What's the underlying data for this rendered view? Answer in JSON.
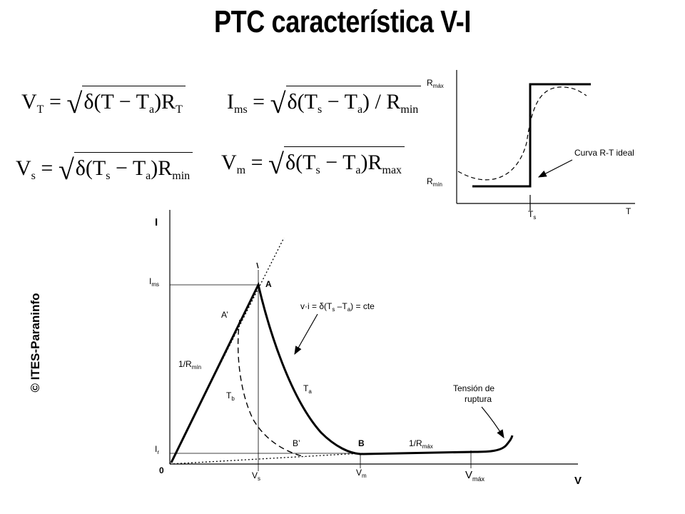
{
  "title": "PTC característica V-I",
  "copyright": "© ITES-Paraninfo",
  "formulas": {
    "vt": {
      "lhs": "V",
      "lhs_sub": "T",
      "delta": "δ(T − T",
      "a": "a",
      "close": ")R",
      "r_sub": "T"
    },
    "ims": {
      "lhs": "I",
      "lhs_sub": "ms",
      "delta": "δ(T",
      "s": "s",
      "mid": " − T",
      "a": "a",
      "close": ") / R",
      "r_sub": "min"
    },
    "vs": {
      "lhs": "V",
      "lhs_sub": "s",
      "delta": "δ(T",
      "s": "s",
      "mid": " − T",
      "a": "a",
      "close": ")R",
      "r_sub": "min"
    },
    "vm": {
      "lhs": "V",
      "lhs_sub": "m",
      "delta": "δ(T",
      "s": "s",
      "mid": " − T",
      "a": "a",
      "close": ")R",
      "r_sub": "max"
    }
  },
  "rt_graph": {
    "y_top_label": "R",
    "y_top_sub": "máx",
    "y_bottom_label": "R",
    "y_bottom_sub": "mín",
    "x_label": "T",
    "ts_label": "T",
    "ts_sub": "s",
    "annotation": "Curva R-T ideal"
  },
  "vi_graph": {
    "y_axis": "I",
    "x_axis": "V",
    "origin": "0",
    "ims_label": "I",
    "ims_sub": "ms",
    "ir_label": "I",
    "ir_sub": "r",
    "vs_label": "V",
    "vs_sub": "s",
    "vm_label": "V",
    "vm_sub": "m",
    "vmax_label": "V",
    "vmax_sub": "máx",
    "point_a": "A",
    "point_a_prime": "A’",
    "point_b": "B",
    "point_b_prime": "B’",
    "slope_min": "1/R",
    "slope_min_sub": "mín",
    "slope_max": "1/R",
    "slope_max_sub": "máx",
    "ta_label": "T",
    "ta_sub": "a",
    "tb_label": "T",
    "tb_sub": "b",
    "hyperbola_eq_1": "v·i = δ(T",
    "hyperbola_eq_s": "s",
    "hyperbola_eq_2": " –T",
    "hyperbola_eq_a": "a",
    "hyperbola_eq_3": ") = cte",
    "breakdown_line1": "Tensión de",
    "breakdown_line2": "ruptura"
  }
}
